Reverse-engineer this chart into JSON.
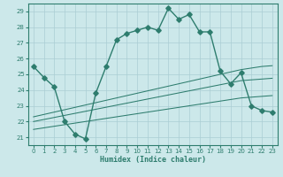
{
  "title": "",
  "xlabel": "Humidex (Indice chaleur)",
  "x": [
    0,
    1,
    2,
    3,
    4,
    5,
    6,
    7,
    8,
    9,
    10,
    11,
    12,
    13,
    14,
    15,
    16,
    17,
    18,
    19,
    20,
    21,
    22,
    23
  ],
  "main_line": [
    25.5,
    24.8,
    24.2,
    22.0,
    21.2,
    20.9,
    23.8,
    25.5,
    27.2,
    27.6,
    27.8,
    28.0,
    27.8,
    29.2,
    28.5,
    28.8,
    27.7,
    27.7,
    25.2,
    24.4,
    25.1,
    23.0,
    22.7,
    22.6
  ],
  "line_straight1": [
    22.3,
    22.45,
    22.6,
    22.75,
    22.9,
    23.05,
    23.2,
    23.35,
    23.5,
    23.65,
    23.8,
    23.95,
    24.1,
    24.25,
    24.4,
    24.55,
    24.7,
    24.85,
    25.0,
    25.15,
    25.3,
    25.4,
    25.5,
    25.55
  ],
  "line_straight2": [
    22.0,
    22.13,
    22.26,
    22.39,
    22.52,
    22.65,
    22.78,
    22.91,
    23.04,
    23.17,
    23.3,
    23.43,
    23.56,
    23.69,
    23.82,
    23.95,
    24.08,
    24.21,
    24.34,
    24.47,
    24.6,
    24.65,
    24.7,
    24.75
  ],
  "line_straight3": [
    21.5,
    21.6,
    21.7,
    21.8,
    21.9,
    22.0,
    22.1,
    22.2,
    22.3,
    22.4,
    22.5,
    22.6,
    22.7,
    22.8,
    22.9,
    23.0,
    23.1,
    23.2,
    23.3,
    23.4,
    23.5,
    23.55,
    23.6,
    23.65
  ],
  "color": "#2e7d6e",
  "bg_color": "#cce8ea",
  "grid_color": "#aacdd4",
  "ylim": [
    20.5,
    29.5
  ],
  "xlim": [
    -0.5,
    23.5
  ],
  "yticks": [
    21,
    22,
    23,
    24,
    25,
    26,
    27,
    28,
    29
  ],
  "xticks": [
    0,
    1,
    2,
    3,
    4,
    5,
    6,
    7,
    8,
    9,
    10,
    11,
    12,
    13,
    14,
    15,
    16,
    17,
    18,
    19,
    20,
    21,
    22,
    23
  ],
  "marker": "D",
  "markersize": 2.8,
  "linewidth": 1.0
}
